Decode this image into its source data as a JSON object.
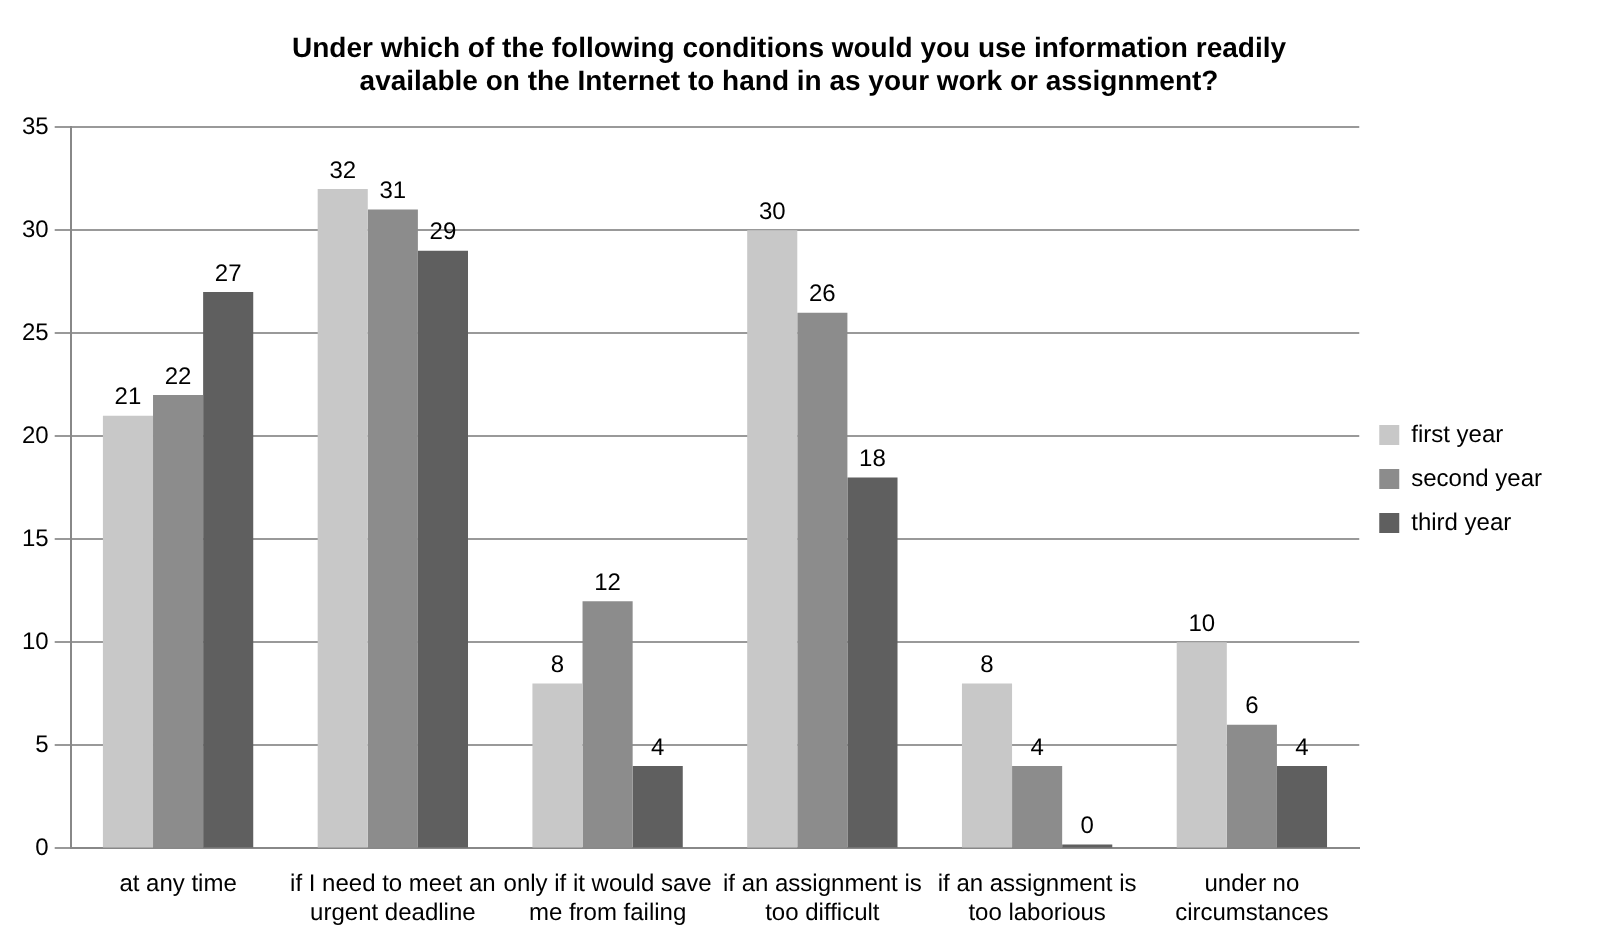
{
  "chart_data": {
    "type": "bar",
    "title": "Under which of the following conditions would you use information readily available on the Internet to hand in as your work or assignment?",
    "categories": [
      "at any time",
      "if I need to meet an urgent deadline",
      "only if it would save me from failing",
      "if an assignment is too difficult",
      "if an assignment is too laborious",
      "under no circumstances"
    ],
    "series": [
      {
        "name": "first year",
        "color": "#c8c8c8",
        "values": [
          21,
          32,
          8,
          30,
          8,
          10
        ]
      },
      {
        "name": "second year",
        "color": "#8c8c8c",
        "values": [
          22,
          31,
          12,
          26,
          4,
          6
        ]
      },
      {
        "name": "third year",
        "color": "#5f5f5f",
        "values": [
          27,
          29,
          4,
          18,
          0,
          4
        ]
      }
    ],
    "ylim": [
      0,
      35
    ],
    "yticks": [
      0,
      5,
      10,
      15,
      20,
      25,
      30,
      35
    ],
    "grid": "y",
    "legend": "right",
    "data_labels": true
  }
}
